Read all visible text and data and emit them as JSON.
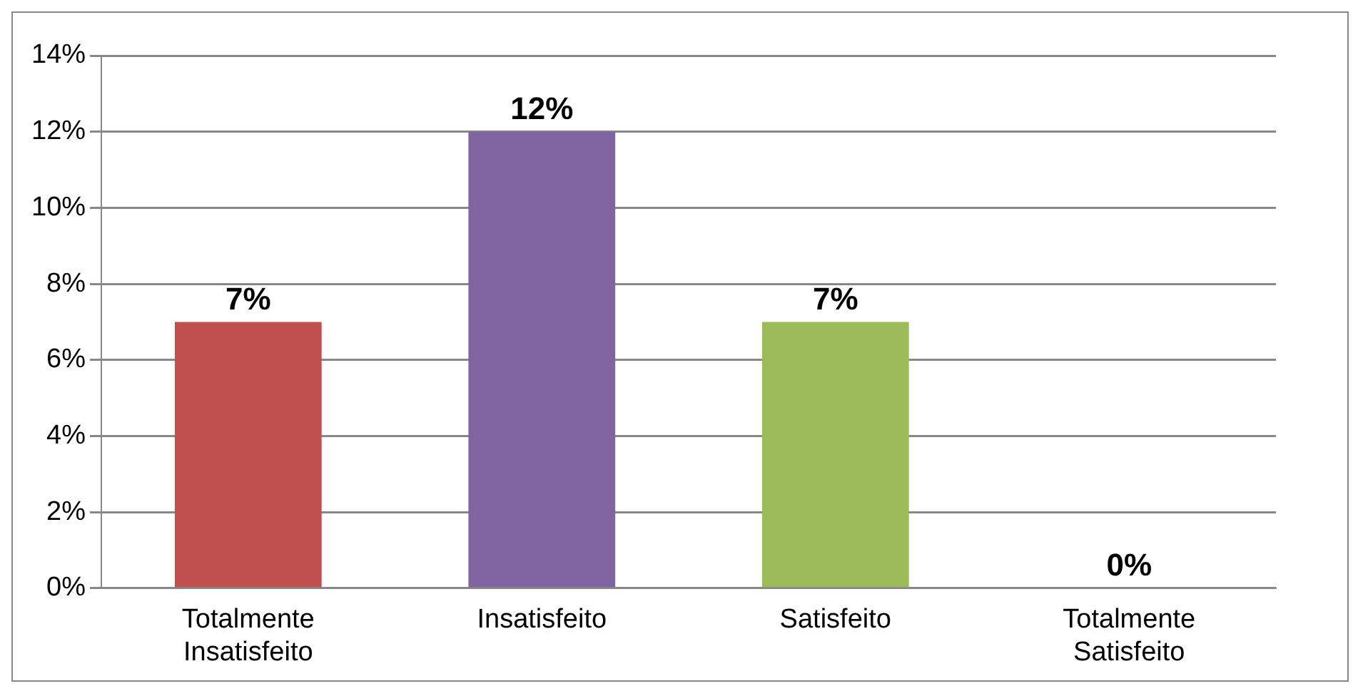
{
  "chart_data": {
    "type": "bar",
    "categories": [
      "Totalmente\nInsatisfeito",
      "Insatisfeito",
      "Satisfeito",
      "Totalmente\nSatisfeito"
    ],
    "values": [
      7,
      12,
      7,
      0
    ],
    "colors": [
      "#c0504d",
      "#8064a2",
      "#9bbb59",
      "#4f81bd"
    ],
    "ylim": [
      0,
      14
    ],
    "yticks": [
      {
        "value": 0,
        "label": "0%"
      },
      {
        "value": 2,
        "label": "2%"
      },
      {
        "value": 4,
        "label": "4%"
      },
      {
        "value": 6,
        "label": "6%"
      },
      {
        "value": 8,
        "label": "8%"
      },
      {
        "value": 10,
        "label": "10%"
      },
      {
        "value": 12,
        "label": "12%"
      },
      {
        "value": 14,
        "label": "14%"
      }
    ],
    "value_labels": [
      "7%",
      "12%",
      "7%",
      "0%"
    ],
    "grid": "y",
    "legend": false
  }
}
